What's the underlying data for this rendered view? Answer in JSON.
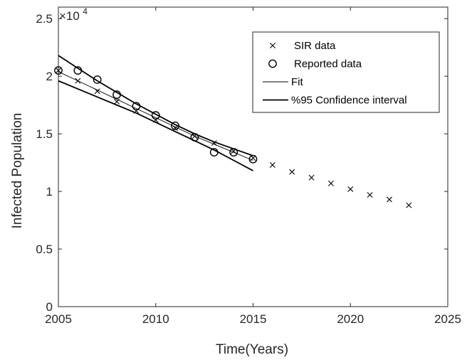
{
  "chart_data": {
    "type": "line",
    "xlabel": "Time(Years)",
    "ylabel": "Infected Population",
    "xlim": [
      2005,
      2025
    ],
    "ylim": [
      0,
      2.6
    ],
    "xticks": [
      2005,
      2010,
      2015,
      2020,
      2025
    ],
    "xtick_labels": [
      "2005",
      "2010",
      "2015",
      "2020",
      "2025"
    ],
    "yticks": [
      0,
      0.5,
      1,
      1.5,
      2,
      2.5
    ],
    "ytick_labels": [
      "0",
      "0.5",
      "1",
      "1.5",
      "2",
      "2.5"
    ],
    "y_multiplier_base": "×10",
    "y_multiplier_exp": "4",
    "grid": false,
    "legend_position": "top-right",
    "series": [
      {
        "name": "SIR data",
        "kind": "marker-x",
        "x": [
          2005,
          2006,
          2007,
          2008,
          2009,
          2010,
          2011,
          2012,
          2013,
          2014,
          2015,
          2016,
          2017,
          2018,
          2019,
          2020,
          2021,
          2022,
          2023
        ],
        "y": [
          2.05,
          1.96,
          1.87,
          1.78,
          1.7,
          1.62,
          1.55,
          1.48,
          1.42,
          1.35,
          1.29,
          1.23,
          1.17,
          1.12,
          1.07,
          1.02,
          0.97,
          0.93,
          0.88
        ]
      },
      {
        "name": "Reported data",
        "kind": "marker-o",
        "x": [
          2005,
          2006,
          2007,
          2008,
          2009,
          2010,
          2011,
          2012,
          2013,
          2014,
          2015
        ],
        "y": [
          2.05,
          2.05,
          1.97,
          1.84,
          1.74,
          1.66,
          1.57,
          1.47,
          1.34,
          1.34,
          1.28
        ]
      },
      {
        "name": "Fit",
        "kind": "line-thin",
        "x": [
          2005,
          2006,
          2007,
          2008,
          2009,
          2010,
          2011,
          2012,
          2013,
          2014,
          2015
        ],
        "y": [
          2.04,
          1.96,
          1.88,
          1.8,
          1.72,
          1.64,
          1.56,
          1.48,
          1.41,
          1.34,
          1.27
        ]
      },
      {
        "name": "%95 Confidence interval",
        "kind": "line-thick",
        "x": [
          2005,
          2006,
          2007,
          2008,
          2009,
          2010,
          2011,
          2012,
          2013,
          2014,
          2015
        ],
        "y": [
          2.18,
          2.07,
          1.96,
          1.86,
          1.76,
          1.67,
          1.58,
          1.5,
          1.43,
          1.37,
          1.31
        ]
      },
      {
        "name": "",
        "kind": "line-thick",
        "x": [
          2005,
          2006,
          2007,
          2008,
          2009,
          2010,
          2011,
          2012,
          2013,
          2014,
          2015
        ],
        "y": [
          1.96,
          1.89,
          1.82,
          1.75,
          1.68,
          1.6,
          1.52,
          1.44,
          1.36,
          1.27,
          1.18
        ]
      }
    ]
  }
}
